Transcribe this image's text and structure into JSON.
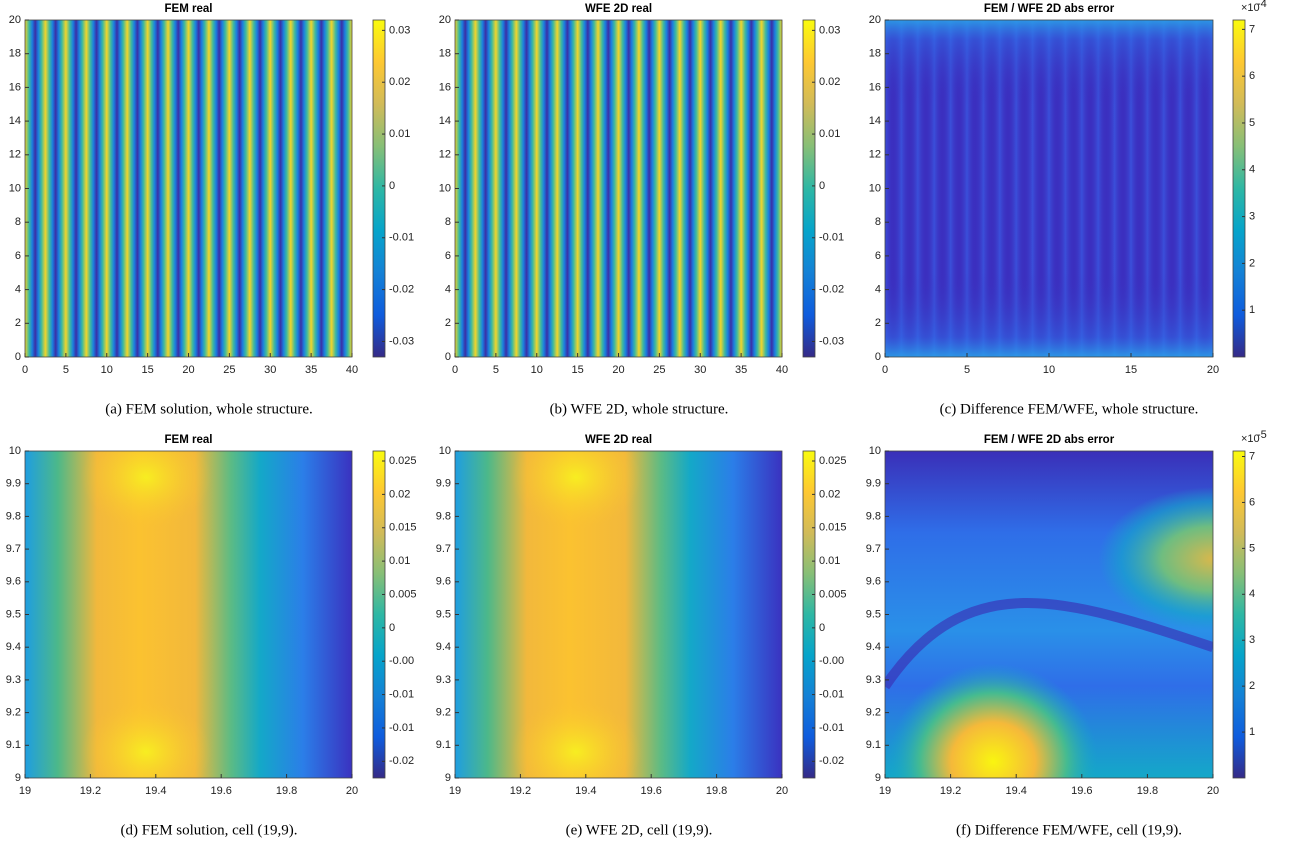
{
  "chart_data": [
    {
      "type": "heatmap",
      "title": "FEM real",
      "caption": "(a) FEM solution, whole structure.",
      "xlim": [
        0,
        40
      ],
      "xticks": [
        0,
        5,
        10,
        15,
        20,
        25,
        30,
        35,
        40
      ],
      "ylim": [
        0,
        20
      ],
      "yticks": [
        0,
        2,
        4,
        6,
        8,
        10,
        12,
        14,
        16,
        18,
        20
      ],
      "colormap": "parula",
      "clim": [
        -0.033,
        0.032
      ],
      "cticks": [
        -0.03,
        -0.02,
        -0.01,
        0,
        0.01,
        0.02,
        0.03
      ]
    },
    {
      "type": "heatmap",
      "title": "WFE 2D real",
      "caption": "(b) WFE 2D, whole structure.",
      "xlim": [
        0,
        40
      ],
      "xticks": [
        0,
        5,
        10,
        15,
        20,
        25,
        30,
        35,
        40
      ],
      "ylim": [
        0,
        20
      ],
      "yticks": [
        0,
        2,
        4,
        6,
        8,
        10,
        12,
        14,
        16,
        18,
        20
      ],
      "colormap": "parula",
      "clim": [
        -0.033,
        0.032
      ],
      "cticks": [
        -0.03,
        -0.02,
        -0.01,
        0,
        0.01,
        0.02,
        0.03
      ]
    },
    {
      "type": "heatmap",
      "title": "FEM / WFE 2D abs error",
      "caption": "(c) Difference FEM/WFE, whole structure.",
      "xlim": [
        0,
        20
      ],
      "xticks": [
        0,
        5,
        10,
        15,
        20
      ],
      "ylim": [
        0,
        20
      ],
      "yticks": [
        0,
        2,
        4,
        6,
        8,
        10,
        12,
        14,
        16,
        18,
        20
      ],
      "colormap": "parula",
      "clim": [
        0,
        0.00072
      ],
      "cticks": [
        {
          "value": 0.0001,
          "label": "1"
        },
        {
          "value": 0.0002,
          "label": "2"
        },
        {
          "value": 0.0003,
          "label": "3"
        },
        {
          "value": 0.0004,
          "label": "4"
        },
        {
          "value": 0.0005,
          "label": "5"
        },
        {
          "value": 0.0006,
          "label": "6"
        },
        {
          "value": 0.0007,
          "label": "7"
        }
      ],
      "colorbar_multiplier": "×10",
      "colorbar_exponent": "-4"
    },
    {
      "type": "heatmap",
      "title": "FEM real",
      "caption": "(d) FEM solution, cell (19,9).",
      "xlim": [
        19,
        20
      ],
      "xticks": [
        19,
        19.2,
        19.4,
        19.6,
        19.8,
        20
      ],
      "ylim": [
        9,
        10
      ],
      "yticks": [
        9,
        9.1,
        9.2,
        9.3,
        9.4,
        9.5,
        9.6,
        9.7,
        9.8,
        9.9,
        10
      ],
      "colormap": "parula",
      "clim": [
        -0.0225,
        0.0265
      ],
      "cticks": [
        -0.02,
        {
          "value": -0.015,
          "label": "-0.01"
        },
        -0.01,
        {
          "value": -0.005,
          "label": "-0.00"
        },
        0,
        0.005,
        0.01,
        0.015,
        0.02,
        0.025
      ]
    },
    {
      "type": "heatmap",
      "title": "WFE 2D real",
      "caption": "(e) WFE 2D, cell (19,9).",
      "xlim": [
        19,
        20
      ],
      "xticks": [
        19,
        19.2,
        19.4,
        19.6,
        19.8,
        20
      ],
      "ylim": [
        9,
        10
      ],
      "yticks": [
        9,
        9.1,
        9.2,
        9.3,
        9.4,
        9.5,
        9.6,
        9.7,
        9.8,
        9.9,
        10
      ],
      "colormap": "parula",
      "clim": [
        -0.0225,
        0.0265
      ],
      "cticks": [
        -0.02,
        {
          "value": -0.015,
          "label": "-0.01"
        },
        -0.01,
        {
          "value": -0.005,
          "label": "-0.00"
        },
        0,
        0.005,
        0.01,
        0.015,
        0.02,
        0.025
      ]
    },
    {
      "type": "heatmap",
      "title": "FEM / WFE 2D abs error",
      "caption": "(f) Difference FEM/WFE, cell (19,9).",
      "xlim": [
        19,
        20
      ],
      "xticks": [
        19,
        19.2,
        19.4,
        19.6,
        19.8,
        20
      ],
      "ylim": [
        9,
        10
      ],
      "yticks": [
        9,
        9.1,
        9.2,
        9.3,
        9.4,
        9.5,
        9.6,
        9.7,
        9.8,
        9.9,
        10
      ],
      "colormap": "parula",
      "clim": [
        0,
        7.12e-05
      ],
      "cticks": [
        {
          "value": 1e-05,
          "label": "1"
        },
        {
          "value": 2e-05,
          "label": "2"
        },
        {
          "value": 3e-05,
          "label": "3"
        },
        {
          "value": 4e-05,
          "label": "4"
        },
        {
          "value": 5e-05,
          "label": "5"
        },
        {
          "value": 6e-05,
          "label": "6"
        },
        {
          "value": 7e-05,
          "label": "7"
        }
      ],
      "colorbar_multiplier": "×10",
      "colorbar_exponent": "-5"
    }
  ]
}
